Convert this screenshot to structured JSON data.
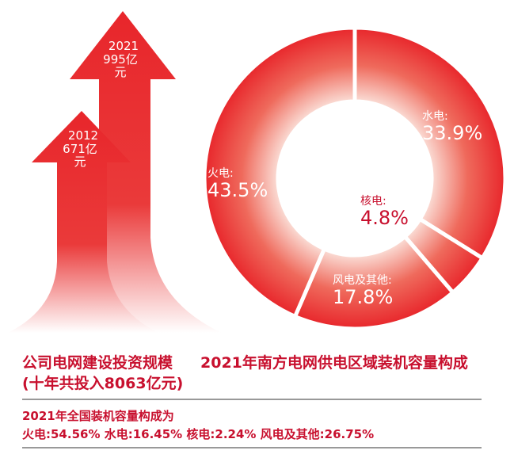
{
  "chart_data": [
    {
      "type": "bar",
      "title": "公司电网建设投资规模",
      "subtitle": "(十年共投入8063亿元)",
      "categories": [
        "2012",
        "2021"
      ],
      "values": [
        671,
        995
      ],
      "labels": [
        "671亿元",
        "995亿元"
      ],
      "unit": "亿元"
    },
    {
      "type": "pie",
      "title": "2021年南方电网供电区域装机容量构成",
      "slices": [
        {
          "name": "水电:",
          "value": 33.9,
          "label": "33.9%"
        },
        {
          "name": "核电:",
          "value": 4.8,
          "label": "4.8%"
        },
        {
          "name": "风电及其他:",
          "value": 17.8,
          "label": "17.8%"
        },
        {
          "name": "火电:",
          "value": 43.5,
          "label": "43.5%"
        }
      ],
      "donut": true,
      "color": "#e8262b"
    }
  ],
  "footer": {
    "heading": "2021年全国装机容量构成为",
    "line": "火电:54.56% 水电:16.45% 核电:2.24% 风电及其他:26.75%"
  },
  "colors": {
    "red": "#e8262b",
    "text": "#c8102e"
  }
}
